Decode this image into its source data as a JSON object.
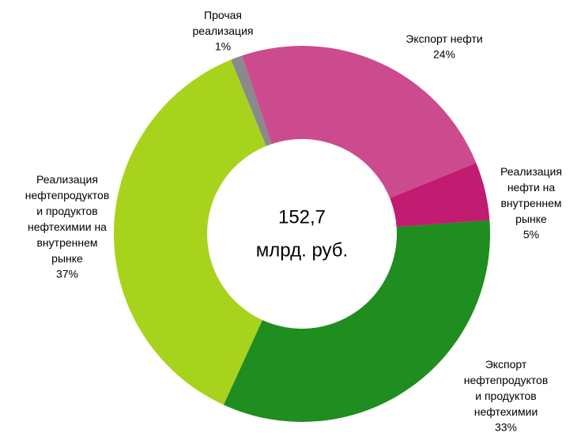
{
  "chart_data": {
    "type": "donut",
    "categories": [
      "Экспорт нефти",
      "Реализация нефти на внутреннем рынке",
      "Экспорт нефтепродуктов и продуктов нефтехимии",
      "Реализация нефтепродуктов и продуктов нефтехимии на внутреннем рынке",
      "Прочая реализация"
    ],
    "values": [
      24,
      5,
      33,
      37,
      1
    ],
    "value_labels": [
      "24%",
      "5%",
      "33%",
      "37%",
      "1%"
    ],
    "colors": [
      "#cc4b8f",
      "#c21b72",
      "#1f8d1f",
      "#a8d31c",
      "#8a8a8a"
    ],
    "center_text": [
      "152,7",
      "млрд. руб."
    ]
  }
}
